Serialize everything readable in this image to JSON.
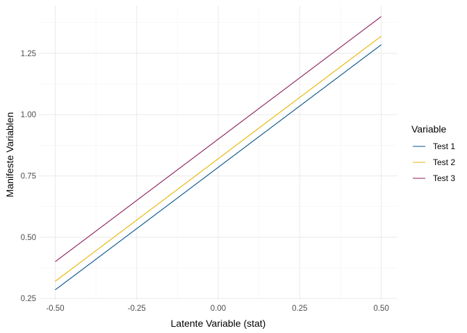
{
  "chart_data": {
    "type": "line",
    "title": "",
    "xlabel": "Latente Variable (stat)",
    "ylabel": "Manifeste Variablen",
    "xlim": [
      -0.55,
      0.55
    ],
    "ylim": [
      0.245,
      1.445
    ],
    "x_ticks": [
      -0.5,
      -0.25,
      0.0,
      0.25,
      0.5
    ],
    "x_tick_labels": [
      "-0.50",
      "-0.25",
      "0.00",
      "0.25",
      "0.50"
    ],
    "y_ticks": [
      0.25,
      0.5,
      0.75,
      1.0,
      1.25
    ],
    "y_tick_labels": [
      "0.25",
      "0.50",
      "0.75",
      "1.00",
      "1.25"
    ],
    "grid": true,
    "legend": {
      "title": "Variable",
      "position": "right"
    },
    "series": [
      {
        "name": "Test 1",
        "color": "#00508a",
        "x": [
          -0.5,
          0.5
        ],
        "y": [
          0.285,
          1.285
        ]
      },
      {
        "name": "Test 2",
        "color": "#e6b400",
        "x": [
          -0.5,
          0.5
        ],
        "y": [
          0.32,
          1.32
        ]
      },
      {
        "name": "Test 3",
        "color": "#8c1a5a",
        "x": [
          -0.5,
          0.5
        ],
        "y": [
          0.4,
          1.4
        ]
      }
    ]
  }
}
